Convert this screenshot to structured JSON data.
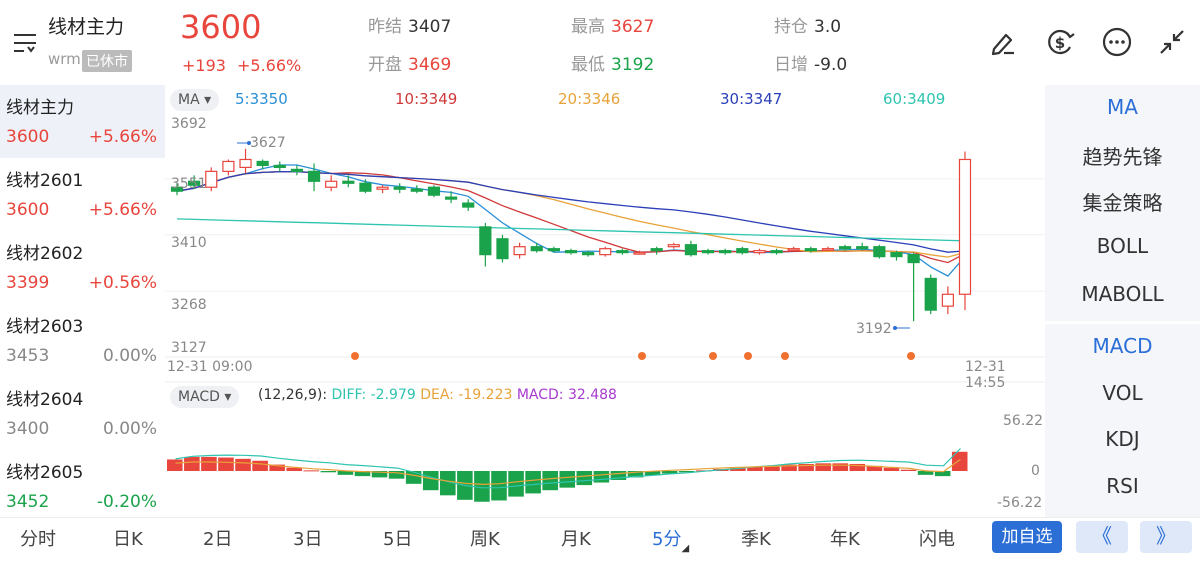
{
  "header": {
    "title": "线材主力",
    "code": "wrm",
    "status": "已休市",
    "price": "3600",
    "change": "+193",
    "change_pct": "+5.66%",
    "stats": [
      {
        "label": "昨结",
        "value": "3407",
        "color": "#333333"
      },
      {
        "label": "开盘",
        "value": "3469",
        "color": "#e8453c"
      },
      {
        "label": "最高",
        "value": "3627",
        "color": "#e8453c"
      },
      {
        "label": "最低",
        "value": "3192",
        "color": "#1aa34a"
      },
      {
        "label": "持仓",
        "value": "3.0",
        "color": "#333333"
      },
      {
        "label": "日增",
        "value": "-9.0",
        "color": "#333333"
      }
    ],
    "icons": [
      "draw-icon",
      "currency-icon",
      "more-icon",
      "collapse-icon"
    ]
  },
  "contracts": [
    {
      "name": "线材主力",
      "price": "3600",
      "pct": "+5.66%",
      "color": "#e8453c"
    },
    {
      "name": "线材2601",
      "price": "3600",
      "pct": "+5.66%",
      "color": "#e8453c"
    },
    {
      "name": "线材2602",
      "price": "3399",
      "pct": "+0.56%",
      "color": "#e8453c"
    },
    {
      "name": "线材2603",
      "price": "3453",
      "pct": "0.00%",
      "color": "#888888"
    },
    {
      "name": "线材2604",
      "price": "3400",
      "pct": "0.00%",
      "color": "#888888"
    },
    {
      "name": "线材2605",
      "price": "3452",
      "pct": "-0.20%",
      "color": "#1aa34a"
    }
  ],
  "chart": {
    "ma_selector": "MA",
    "ma_values": [
      {
        "label": "5:3350",
        "color": "#2a8fd6"
      },
      {
        "label": "10:3349",
        "color": "#d0393a"
      },
      {
        "label": "20:3346",
        "color": "#e8a23a"
      },
      {
        "label": "30:3347",
        "color": "#2a3fb8"
      },
      {
        "label": "60:3409",
        "color": "#2ec4b0"
      }
    ],
    "y_ticks": [
      "3692",
      "3551",
      "3410",
      "3268",
      "3127"
    ],
    "high_marker": "3627",
    "low_marker": "3192",
    "time_start": "12-31 09:00",
    "time_end": "12-31 14:55",
    "macd_selector": "MACD",
    "macd_params": "(12,26,9):",
    "diff_label": "DIFF: -2.979",
    "dea_label": "DEA: -19.223",
    "macd_label": "MACD: 32.488",
    "macd_ticks": [
      "56.22",
      "0",
      "-56.22"
    ]
  },
  "chart_data": {
    "type": "candlestick",
    "x_range": [
      "12-31 09:00",
      "12-31 14:55"
    ],
    "ylim": [
      3127,
      3692
    ],
    "candles": [
      {
        "o": 3530,
        "h": 3540,
        "c": 3520,
        "l": 3510
      },
      {
        "o": 3545,
        "h": 3560,
        "c": 3535,
        "l": 3525
      },
      {
        "o": 3530,
        "h": 3580,
        "c": 3570,
        "l": 3520
      },
      {
        "o": 3570,
        "h": 3600,
        "c": 3595,
        "l": 3560
      },
      {
        "o": 3580,
        "h": 3627,
        "c": 3600,
        "l": 3565
      },
      {
        "o": 3595,
        "h": 3600,
        "c": 3585,
        "l": 3575
      },
      {
        "o": 3585,
        "h": 3595,
        "c": 3580,
        "l": 3570
      },
      {
        "o": 3575,
        "h": 3585,
        "c": 3570,
        "l": 3560
      },
      {
        "o": 3570,
        "h": 3590,
        "c": 3545,
        "l": 3520
      },
      {
        "o": 3530,
        "h": 3560,
        "c": 3545,
        "l": 3520
      },
      {
        "o": 3545,
        "h": 3560,
        "c": 3540,
        "l": 3530
      },
      {
        "o": 3540,
        "h": 3550,
        "c": 3520,
        "l": 3515
      },
      {
        "o": 3525,
        "h": 3535,
        "c": 3530,
        "l": 3515
      },
      {
        "o": 3530,
        "h": 3540,
        "c": 3525,
        "l": 3515
      },
      {
        "o": 3525,
        "h": 3535,
        "c": 3520,
        "l": 3515
      },
      {
        "o": 3530,
        "h": 3535,
        "c": 3510,
        "l": 3505
      },
      {
        "o": 3505,
        "h": 3520,
        "c": 3500,
        "l": 3490
      },
      {
        "o": 3490,
        "h": 3500,
        "c": 3480,
        "l": 3470
      },
      {
        "o": 3430,
        "h": 3440,
        "c": 3360,
        "l": 3330
      },
      {
        "o": 3400,
        "h": 3410,
        "c": 3350,
        "l": 3340
      },
      {
        "o": 3360,
        "h": 3390,
        "c": 3380,
        "l": 3350
      },
      {
        "o": 3380,
        "h": 3390,
        "c": 3370,
        "l": 3365
      },
      {
        "o": 3375,
        "h": 3380,
        "c": 3370,
        "l": 3365
      },
      {
        "o": 3370,
        "h": 3375,
        "c": 3365,
        "l": 3360
      },
      {
        "o": 3365,
        "h": 3370,
        "c": 3360,
        "l": 3355
      },
      {
        "o": 3360,
        "h": 3380,
        "c": 3375,
        "l": 3355
      },
      {
        "o": 3370,
        "h": 3375,
        "c": 3365,
        "l": 3360
      },
      {
        "o": 3365,
        "h": 3370,
        "c": 3365,
        "l": 3360
      },
      {
        "o": 3375,
        "h": 3380,
        "c": 3370,
        "l": 3360
      },
      {
        "o": 3380,
        "h": 3390,
        "c": 3385,
        "l": 3375
      },
      {
        "o": 3385,
        "h": 3395,
        "c": 3360,
        "l": 3355
      },
      {
        "o": 3370,
        "h": 3375,
        "c": 3365,
        "l": 3360
      },
      {
        "o": 3370,
        "h": 3375,
        "c": 3365,
        "l": 3360
      },
      {
        "o": 3375,
        "h": 3380,
        "c": 3365,
        "l": 3360
      },
      {
        "o": 3365,
        "h": 3375,
        "c": 3370,
        "l": 3360
      },
      {
        "o": 3370,
        "h": 3375,
        "c": 3365,
        "l": 3360
      },
      {
        "o": 3375,
        "h": 3380,
        "c": 3375,
        "l": 3370
      },
      {
        "o": 3375,
        "h": 3380,
        "c": 3370,
        "l": 3365
      },
      {
        "o": 3375,
        "h": 3380,
        "c": 3375,
        "l": 3370
      },
      {
        "o": 3380,
        "h": 3385,
        "c": 3375,
        "l": 3370
      },
      {
        "o": 3380,
        "h": 3390,
        "c": 3375,
        "l": 3370
      },
      {
        "o": 3380,
        "h": 3385,
        "c": 3355,
        "l": 3350
      },
      {
        "o": 3365,
        "h": 3370,
        "c": 3355,
        "l": 3345
      },
      {
        "o": 3360,
        "h": 3365,
        "c": 3340,
        "l": 3192
      },
      {
        "o": 3300,
        "h": 3310,
        "c": 3220,
        "l": 3210
      },
      {
        "o": 3230,
        "h": 3280,
        "c": 3260,
        "l": 3210
      },
      {
        "o": 3260,
        "h": 3620,
        "c": 3600,
        "l": 3220
      }
    ],
    "ma_series": [
      {
        "name": "5",
        "last": 3350
      },
      {
        "name": "10",
        "last": 3349
      },
      {
        "name": "20",
        "last": 3346
      },
      {
        "name": "30",
        "last": 3347
      },
      {
        "name": "60",
        "last": 3409
      }
    ],
    "macd": {
      "diff": -2.979,
      "dea": -19.223,
      "macd": 32.488,
      "ylim": [
        -56.22,
        56.22
      ],
      "hist": [
        18,
        22,
        22,
        21,
        19,
        16,
        10,
        5,
        1,
        -2,
        -6,
        -8,
        -10,
        -12,
        -20,
        -30,
        -38,
        -45,
        -48,
        -46,
        -40,
        -35,
        -30,
        -26,
        -22,
        -18,
        -14,
        -10,
        -7,
        -4,
        -2,
        1,
        3,
        5,
        7,
        8,
        10,
        11,
        12,
        12,
        11,
        8,
        5,
        2,
        -6,
        -8,
        30
      ]
    }
  },
  "indicators": [
    "MA",
    "趋势先锋",
    "集金策略",
    "BOLL",
    "MABOLL",
    "MACD",
    "VOL",
    "KDJ",
    "RSI"
  ],
  "periods": [
    "分时",
    "日K",
    "2日",
    "3日",
    "5日",
    "周K",
    "月K",
    "5分",
    "季K",
    "年K",
    "闪电"
  ],
  "active_period": "5分",
  "add_watch": "加自选",
  "nav_prev": "《",
  "nav_next": "》"
}
